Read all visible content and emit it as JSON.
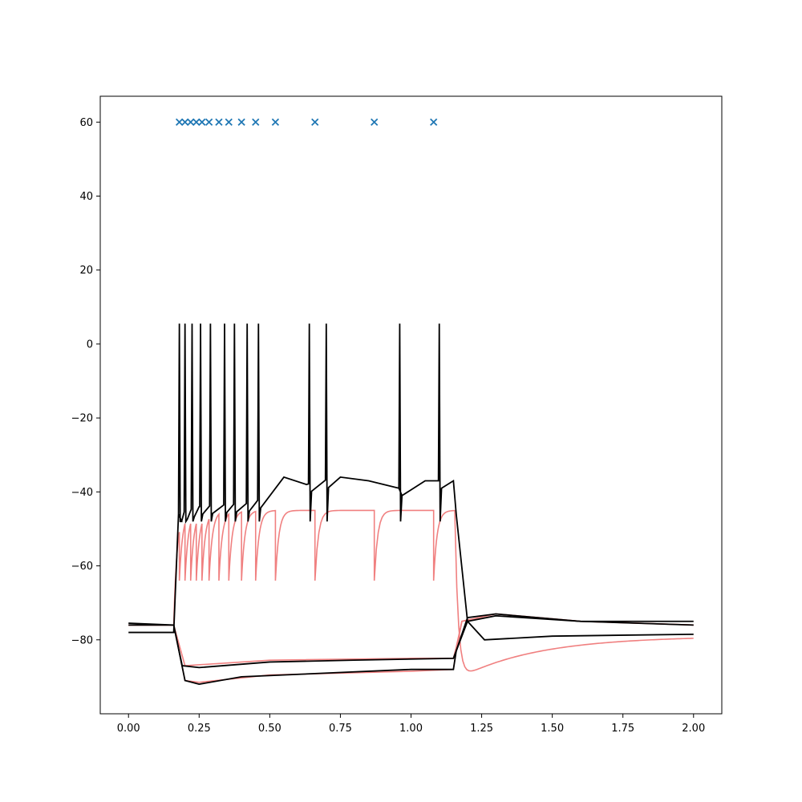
{
  "chart_data": {
    "type": "line",
    "title": "",
    "xlabel": "",
    "ylabel": "",
    "xlim": [
      -0.1,
      2.1
    ],
    "ylim": [
      -100,
      67
    ],
    "grid": false,
    "x_ticks": [
      0.0,
      0.25,
      0.5,
      0.75,
      1.0,
      1.25,
      1.5,
      1.75,
      2.0
    ],
    "x_tick_labels": [
      "0.00",
      "0.25",
      "0.50",
      "0.75",
      "1.00",
      "1.25",
      "1.50",
      "1.75",
      "2.00"
    ],
    "y_ticks": [
      -80,
      -60,
      -40,
      -20,
      0,
      20,
      40,
      60
    ],
    "y_tick_labels": [
      "−80",
      "−60",
      "−40",
      "−20",
      "0",
      "20",
      "40",
      "60"
    ],
    "colors": {
      "recorded": "#000000",
      "model": "#f08080",
      "spike_markers": "#1f77b4"
    },
    "spike_markers": {
      "y": 60,
      "x": [
        0.18,
        0.2,
        0.22,
        0.24,
        0.26,
        0.285,
        0.32,
        0.355,
        0.4,
        0.45,
        0.52,
        0.66,
        0.87,
        1.08
      ]
    },
    "recorded_spike_times": [
      0.18,
      0.2,
      0.225,
      0.255,
      0.29,
      0.34,
      0.375,
      0.42,
      0.46,
      0.64,
      0.7,
      0.96,
      1.1
    ],
    "series": [
      {
        "role": "recorded",
        "x": [
          0.0,
          0.16,
          0.18,
          0.25,
          0.45,
          0.55,
          0.63,
          0.75,
          0.85,
          0.96,
          1.05,
          1.15,
          1.16,
          1.2,
          1.26,
          1.5,
          2.0
        ],
        "y": [
          -78,
          -78,
          -46,
          -44,
          -43,
          -36,
          -38,
          -36,
          -37,
          -39,
          -37,
          -37,
          -46,
          -75,
          -80,
          -79,
          -78.5
        ]
      },
      {
        "role": "recorded",
        "x": [
          0.0,
          0.16,
          0.19,
          0.25,
          0.5,
          0.8,
          1.15,
          1.16,
          1.2,
          1.3,
          1.6,
          2.0
        ],
        "y": [
          -75.5,
          -76,
          -87,
          -87.5,
          -86,
          -85.5,
          -85,
          -83,
          -75,
          -73.5,
          -75,
          -75
        ]
      },
      {
        "role": "recorded",
        "x": [
          0.0,
          0.16,
          0.2,
          0.25,
          0.4,
          0.7,
          1.0,
          1.15,
          1.16,
          1.2,
          1.3,
          1.6,
          2.0
        ],
        "y": [
          -76,
          -76,
          -91,
          -92,
          -90,
          -89,
          -88,
          -88,
          -83,
          -74,
          -73,
          -75,
          -76
        ]
      },
      {
        "role": "model",
        "x": [
          0.0,
          0.16,
          0.2,
          0.5,
          1.0,
          1.15,
          1.16,
          1.18,
          1.3,
          1.6,
          2.0
        ],
        "y": [
          -76,
          -76,
          -87,
          -85.5,
          -85,
          -85,
          -82,
          -75,
          -73,
          -75,
          -76
        ]
      },
      {
        "role": "model",
        "x": [
          0.0,
          0.16,
          0.2,
          0.25,
          0.5,
          1.0,
          1.15,
          1.16,
          1.18,
          1.3,
          1.6,
          2.0
        ],
        "y": [
          -76,
          -76,
          -91,
          -91.5,
          -89.5,
          -88.5,
          -88,
          -83,
          -75,
          -73,
          -75,
          -76
        ]
      },
      {
        "role": "model",
        "type": "threshold_reset",
        "v_rest": -76,
        "v_plateau": -45,
        "v_reset": -64,
        "t_on": 0.16,
        "t_off": 1.155,
        "v_min_after": -91,
        "v_end": -79
      }
    ]
  }
}
